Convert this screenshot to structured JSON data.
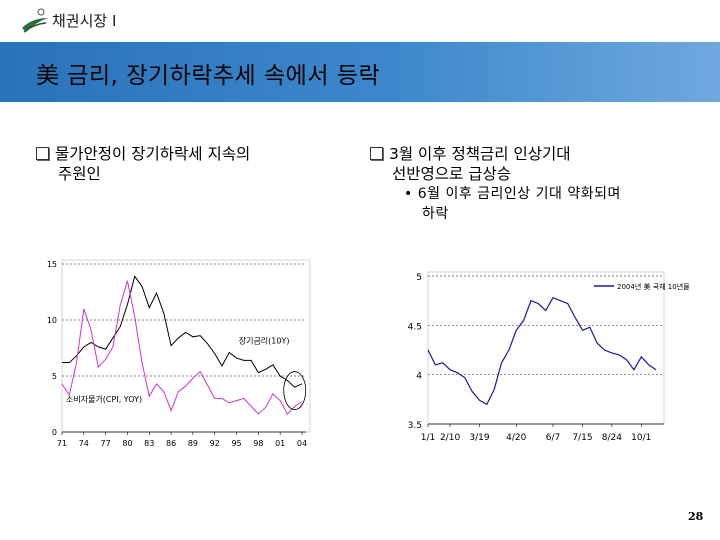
{
  "header": {
    "logo_icon": "swoosh-logo-icon",
    "section": "채권시장 I"
  },
  "title": "美 금리, 장기하락추세 속에서 등락",
  "left_bullet": {
    "line1": "물가안정이 장기하락세 지속의",
    "line2": "주원인"
  },
  "right_bullet": {
    "line1": "3월 이후 정책금리 인상기대",
    "line2": "선반영으로 급상승",
    "sub_line1": "6월 이후 금리인상 기대 약화되며",
    "sub_line2": "하락"
  },
  "colors": {
    "title_bar_start": "#2a72b8",
    "title_bar_end": "#6fa9de",
    "series_long_rate": "#000000",
    "series_cpi": "#cc33cc",
    "series_us_treasury": "#1a1aa0"
  },
  "chart_data": [
    {
      "type": "line",
      "x_ticks": [
        "71",
        "74",
        "77",
        "80",
        "83",
        "86",
        "89",
        "92",
        "95",
        "98",
        "01",
        "04"
      ],
      "y_ticks": [
        "0",
        "5",
        "10",
        "15"
      ],
      "ylim": [
        0,
        15
      ],
      "grid": "horizontal dotted",
      "annotations": [
        "장기금리(10Y)",
        "소비자물가(CPI, YOY)"
      ],
      "series": [
        {
          "name": "장기금리(10Y)",
          "x": [
            1971,
            1972,
            1973,
            1974,
            1975,
            1976,
            1977,
            1978,
            1979,
            1980,
            1981,
            1982,
            1983,
            1984,
            1985,
            1986,
            1987,
            1988,
            1989,
            1990,
            1991,
            1992,
            1993,
            1994,
            1995,
            1996,
            1997,
            1998,
            1999,
            2000,
            2001,
            2002,
            2003,
            2004
          ],
          "values": [
            6.2,
            6.2,
            6.8,
            7.6,
            8.0,
            7.6,
            7.4,
            8.4,
            9.4,
            11.4,
            13.9,
            13.0,
            11.1,
            12.4,
            10.6,
            7.7,
            8.4,
            8.9,
            8.5,
            8.6,
            7.9,
            7.0,
            5.9,
            7.1,
            6.6,
            6.4,
            6.4,
            5.3,
            5.6,
            6.0,
            5.0,
            4.6,
            4.0,
            4.3
          ]
        },
        {
          "name": "소비자물가(CPI, YOY)",
          "x": [
            1971,
            1972,
            1973,
            1974,
            1975,
            1976,
            1977,
            1978,
            1979,
            1980,
            1981,
            1982,
            1983,
            1984,
            1985,
            1986,
            1987,
            1988,
            1989,
            1990,
            1991,
            1992,
            1993,
            1994,
            1995,
            1996,
            1997,
            1998,
            1999,
            2000,
            2001,
            2002,
            2003,
            2004
          ],
          "values": [
            4.3,
            3.3,
            6.2,
            11.0,
            9.1,
            5.8,
            6.5,
            7.6,
            11.3,
            13.5,
            10.3,
            6.2,
            3.2,
            4.3,
            3.6,
            1.9,
            3.6,
            4.1,
            4.8,
            5.4,
            4.2,
            3.0,
            3.0,
            2.6,
            2.8,
            3.0,
            2.3,
            1.6,
            2.2,
            3.4,
            2.8,
            1.6,
            2.3,
            2.7
          ]
        }
      ]
    },
    {
      "type": "line",
      "x_ticks": [
        "1/1",
        "2/10",
        "3/19",
        "4/20",
        "6/7",
        "7/15",
        "8/24",
        "10/1"
      ],
      "y_ticks": [
        "3.5",
        "4",
        "4.5",
        "5"
      ],
      "ylim": [
        3.5,
        5
      ],
      "grid": "horizontal dotted",
      "legend": {
        "label": "2004년 美 국채 10년물",
        "position": "top-right"
      },
      "series": [
        {
          "name": "2004년 美 국채 10년물",
          "x": [
            "1/1",
            "1/15",
            "2/1",
            "2/10",
            "2/20",
            "3/1",
            "3/10",
            "3/19",
            "3/25",
            "4/1",
            "4/5",
            "4/10",
            "4/20",
            "5/1",
            "5/10",
            "5/20",
            "6/1",
            "6/7",
            "6/15",
            "6/25",
            "7/1",
            "7/15",
            "7/25",
            "8/5",
            "8/15",
            "8/24",
            "9/1",
            "9/10",
            "9/20",
            "10/1",
            "10/10",
            "10/15"
          ],
          "values": [
            4.25,
            4.1,
            4.12,
            4.05,
            4.02,
            3.97,
            3.83,
            3.74,
            3.7,
            3.85,
            4.12,
            4.25,
            4.45,
            4.55,
            4.75,
            4.72,
            4.65,
            4.78,
            4.75,
            4.72,
            4.58,
            4.45,
            4.48,
            4.32,
            4.25,
            4.22,
            4.2,
            4.15,
            4.05,
            4.18,
            4.1,
            4.05
          ]
        }
      ]
    }
  ],
  "page_number": "28"
}
